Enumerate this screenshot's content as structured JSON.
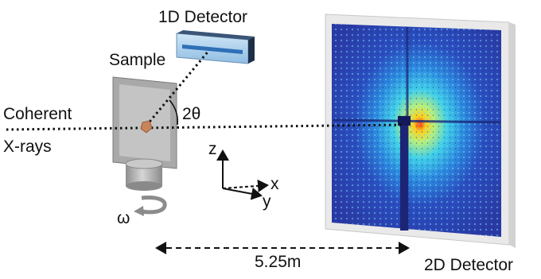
{
  "labels": {
    "detector_1d": "1D Detector",
    "sample": "Sample",
    "beam_line1": "Coherent",
    "beam_line2": "X-rays",
    "angle": "2θ",
    "axis_z": "z",
    "axis_x": "x",
    "axis_y": "y",
    "rotation": "ω",
    "distance": "5.25m",
    "detector_2d": "2D Detector"
  },
  "colors": {
    "detector_face": "#a9cde8",
    "detector_strip": "#2f6fb6",
    "sample": "#c8845a",
    "stage": "#a9a9a9",
    "pattern_bg": "#2a3aa5",
    "pattern_core": "#ff3a10"
  },
  "icons": {
    "rotation": "curved-arrow-icon"
  }
}
